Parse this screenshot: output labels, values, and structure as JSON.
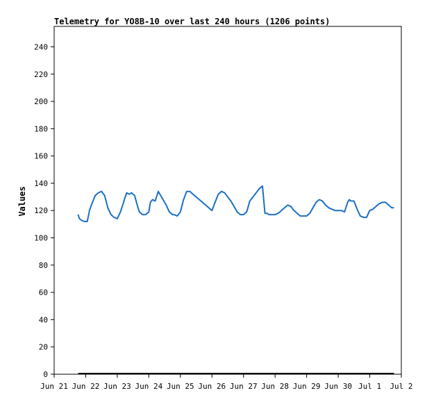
{
  "chart_data": {
    "type": "line",
    "title": "Telemetry for YO8B-10 over last 240 hours (1206 points)",
    "xlabel": "",
    "ylabel": "Values",
    "ylim": [
      0,
      255
    ],
    "yticks": [
      0,
      20,
      40,
      60,
      80,
      100,
      120,
      140,
      160,
      180,
      200,
      220,
      240
    ],
    "xticks": [
      "Jun 21",
      "Jun 22",
      "Jun 23",
      "Jun 24",
      "Jun 25",
      "Jun 26",
      "Jun 27",
      "Jun 28",
      "Jun 29",
      "Jun 30",
      "Jul 1",
      "Jul 2"
    ],
    "xrange_days": [
      0,
      11
    ],
    "grid": false,
    "colors": {
      "series": "#1a6fc4",
      "baseline": "#000000"
    },
    "series": [
      {
        "x": [
          0.76,
          0.8,
          0.86,
          0.95,
          1.05,
          1.12,
          1.18,
          1.25,
          1.3,
          1.4,
          1.5,
          1.6,
          1.7,
          1.8,
          1.9,
          2.0,
          2.1,
          2.2,
          2.25,
          2.3,
          2.38,
          2.45,
          2.55,
          2.62,
          2.7,
          2.8,
          2.9,
          3.0,
          3.05,
          3.12,
          3.2,
          3.3,
          3.45,
          3.55,
          3.65,
          3.75,
          3.8,
          3.9,
          4.0,
          4.1,
          4.2,
          4.3,
          4.4,
          4.5,
          4.6,
          4.7,
          4.8,
          4.9,
          5.0,
          5.1,
          5.2,
          5.3,
          5.4,
          5.5,
          5.6,
          5.7,
          5.8,
          5.9,
          6.0,
          6.1,
          6.2,
          6.3,
          6.4,
          6.5,
          6.6,
          6.68,
          6.75,
          6.8,
          6.9,
          7.0,
          7.1,
          7.2,
          7.3,
          7.4,
          7.5,
          7.6,
          7.7,
          7.8,
          7.9,
          8.0,
          8.1,
          8.2,
          8.3,
          8.4,
          8.5,
          8.6,
          8.7,
          8.8,
          8.9,
          9.0,
          9.1,
          9.2,
          9.3,
          9.35,
          9.4,
          9.5,
          9.55,
          9.6,
          9.7,
          9.8,
          9.9,
          10.0,
          10.1,
          10.2,
          10.3,
          10.4,
          10.5,
          10.6,
          10.7,
          10.77
        ],
        "y": [
          117,
          114,
          113,
          112,
          112,
          120,
          124,
          128,
          131,
          133,
          134,
          131,
          122,
          117,
          115,
          114,
          119,
          126,
          130,
          133,
          132,
          133,
          131,
          125,
          119,
          117,
          117,
          119,
          126,
          128,
          127,
          134,
          128,
          124,
          119,
          117,
          117,
          116,
          119,
          128,
          134,
          134,
          132,
          130,
          128,
          126,
          124,
          122,
          120,
          126,
          132,
          134,
          133,
          130,
          127,
          123,
          119,
          117,
          117,
          119,
          127,
          130,
          133,
          136,
          138,
          118,
          118,
          117,
          117,
          117,
          118,
          120,
          122,
          124,
          123,
          120,
          118,
          116,
          116,
          116,
          118,
          122,
          126,
          128,
          127,
          124,
          122,
          121,
          120,
          120,
          120,
          119,
          126,
          128,
          127,
          127,
          124,
          121,
          116,
          115,
          115,
          120,
          121,
          123,
          125,
          126,
          126,
          124,
          122,
          122
        ]
      }
    ]
  }
}
